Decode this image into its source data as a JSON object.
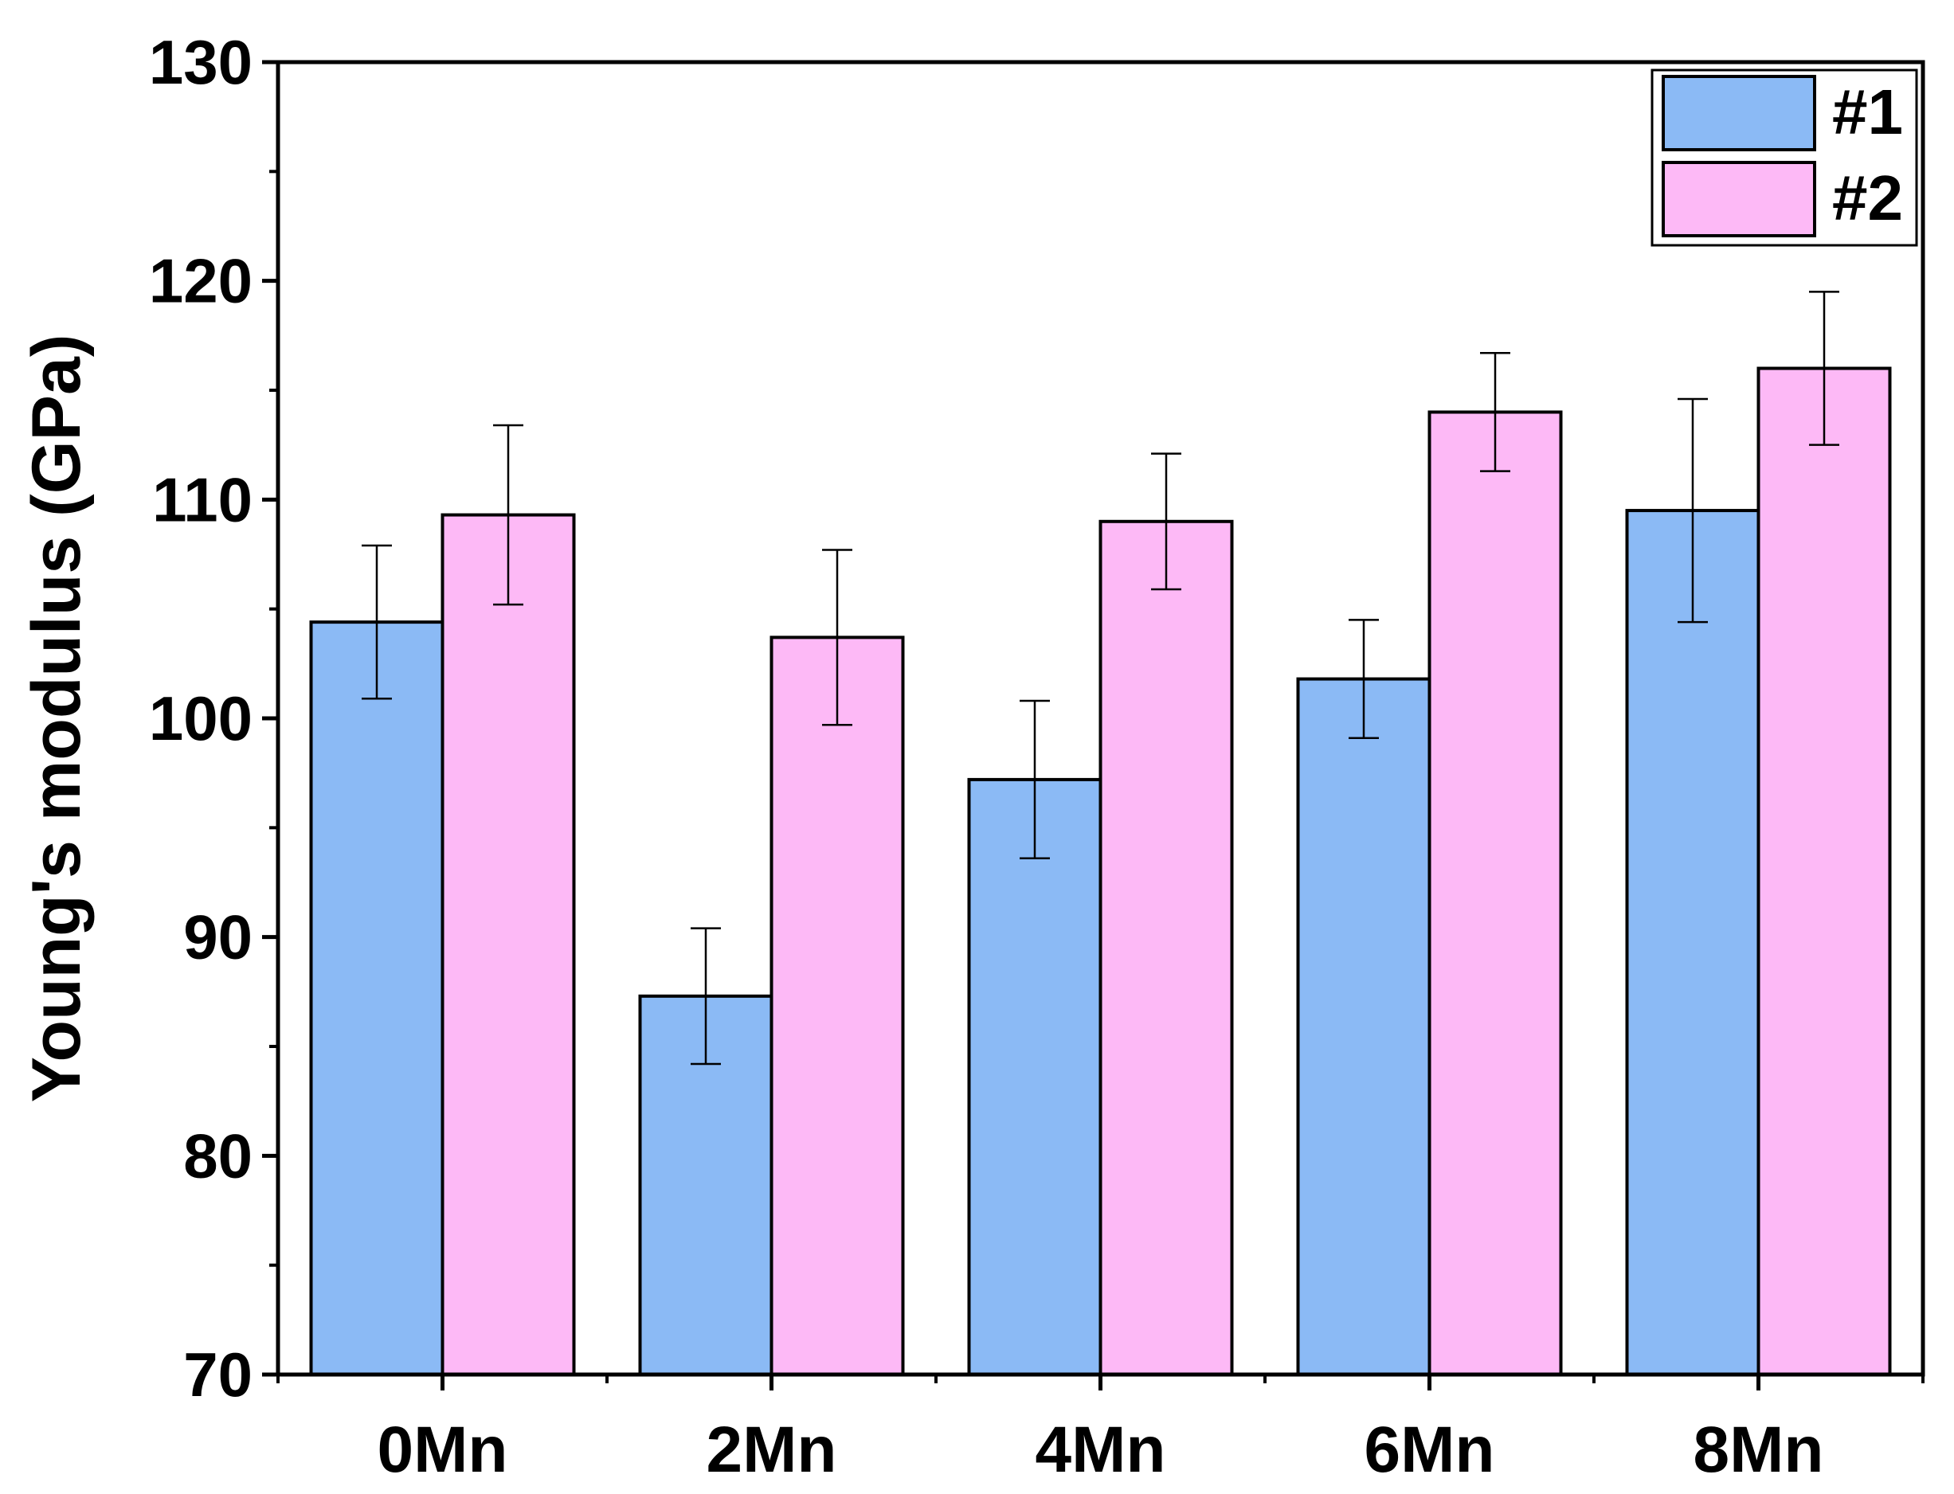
{
  "chart_data": {
    "type": "bar",
    "title": "",
    "xlabel": "",
    "ylabel": "Young's modulus (GPa)",
    "ylim": [
      70,
      130
    ],
    "yticks": [
      70,
      80,
      90,
      100,
      110,
      120,
      130
    ],
    "categories": [
      "0Mn",
      "2Mn",
      "4Mn",
      "6Mn",
      "8Mn"
    ],
    "series": [
      {
        "name": "#1",
        "color": "#8BBAF5",
        "values": [
          104.4,
          87.3,
          97.2,
          101.8,
          109.5
        ],
        "errors": [
          3.5,
          3.1,
          3.6,
          2.7,
          5.1
        ]
      },
      {
        "name": "#2",
        "color": "#FDB9F6",
        "values": [
          109.3,
          103.7,
          109.0,
          114.0,
          116.0
        ],
        "errors": [
          4.1,
          4.0,
          3.1,
          2.7,
          3.5
        ]
      }
    ],
    "legend_position": "top-right",
    "grid": false
  }
}
